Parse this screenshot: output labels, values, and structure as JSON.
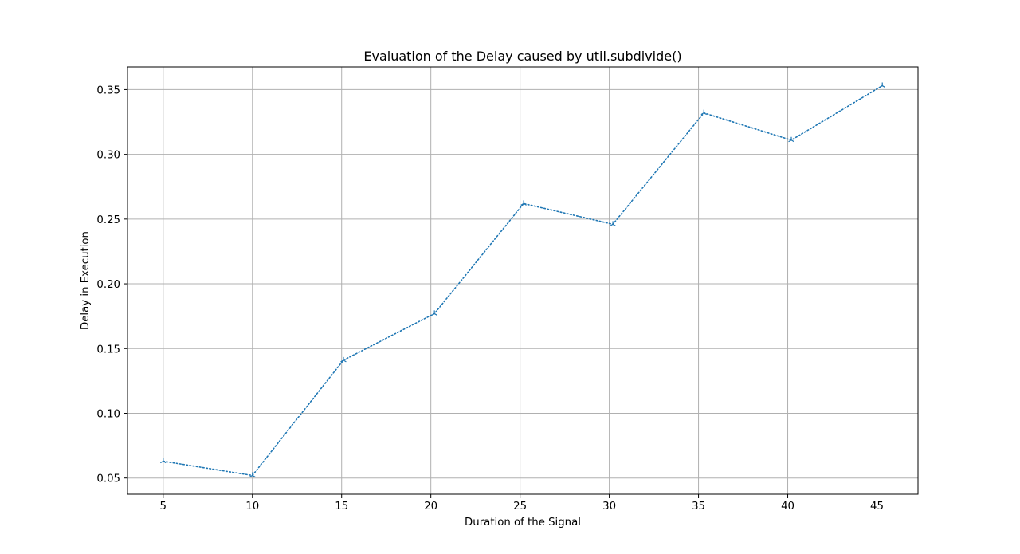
{
  "chart_data": {
    "type": "line",
    "title": "Evaluation of the Delay caused by util.subdivide()",
    "xlabel": "Duration of the Signal",
    "ylabel": "Delay in Execution",
    "xlim": [
      3.0,
      47.3
    ],
    "ylim": [
      0.0375,
      0.3675
    ],
    "xticks": [
      5,
      10,
      15,
      20,
      25,
      30,
      35,
      40,
      45
    ],
    "yticks": [
      0.05,
      0.1,
      0.15,
      0.2,
      0.25,
      0.3,
      0.35
    ],
    "ytick_labels": [
      "0.05",
      "0.10",
      "0.15",
      "0.20",
      "0.25",
      "0.30",
      "0.35"
    ],
    "grid": true,
    "series": [
      {
        "x": [
          5.0,
          10.0,
          15.1,
          20.2,
          25.2,
          30.2,
          35.3,
          40.2,
          45.3
        ],
        "y": [
          0.063,
          0.052,
          0.141,
          0.177,
          0.262,
          0.246,
          0.332,
          0.311,
          0.353
        ],
        "color": "#1f77b4",
        "linestyle": "dotted",
        "marker": "tri_up"
      }
    ]
  }
}
